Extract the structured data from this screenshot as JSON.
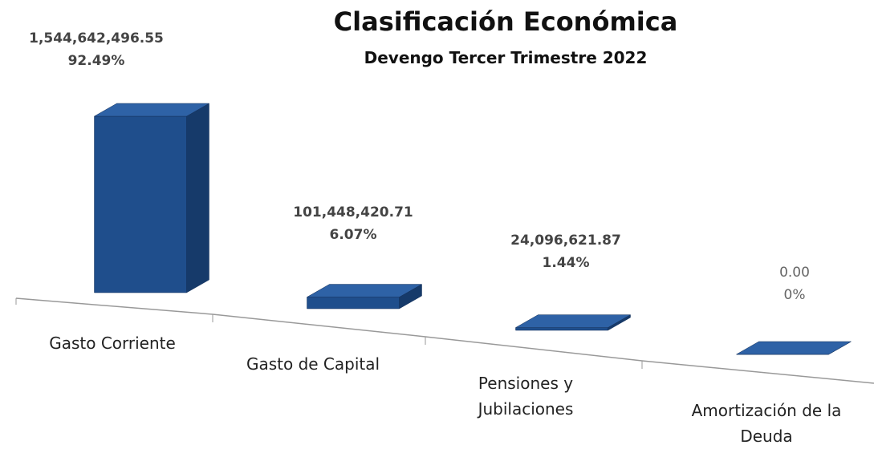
{
  "chart_data": {
    "type": "bar",
    "title": "Clasificación Económica",
    "subtitle": "Devengo Tercer Trimestre 2022",
    "categories": [
      "Gasto Corriente",
      "Gasto de Capital",
      "Pensiones y Jubilaciones",
      "Amortización de la Deuda"
    ],
    "values": [
      1544642496.55,
      101448420.71,
      24096621.87,
      0
    ],
    "value_labels": [
      "1,544,642,496.55",
      "101,448,420.71",
      "24,096,621.87",
      "0.00"
    ],
    "percentages": [
      92.49,
      6.07,
      1.44,
      0
    ],
    "percentage_labels": [
      "92.49%",
      "6.07%",
      "1.44%",
      "0%"
    ],
    "color": "#1f4e8c"
  }
}
